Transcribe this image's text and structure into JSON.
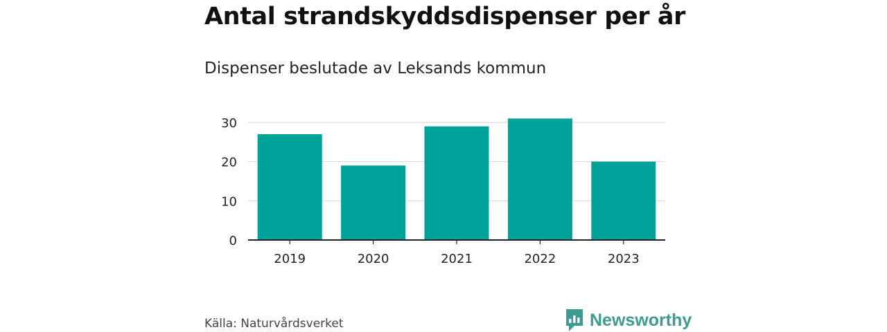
{
  "header": {
    "title": "Antal strandskyddsdispenser per år",
    "subtitle": "Dispenser beslutade av Leksands kommun"
  },
  "footer": {
    "source": "Källa: Naturvårdsverket",
    "brand_name": "Newsworthy",
    "brand_icon": "newsworthy-logo-icon",
    "brand_color": "#3f9a92"
  },
  "colors": {
    "bar": "#00a39a",
    "grid": "#d9d9d9",
    "axis": "#222222",
    "tick_text": "#222222"
  },
  "chart_data": {
    "type": "bar",
    "title": "Antal strandskyddsdispenser per år",
    "subtitle": "Dispenser beslutade av Leksands kommun",
    "categories": [
      "2019",
      "2020",
      "2021",
      "2022",
      "2023"
    ],
    "values": [
      27,
      19,
      29,
      31,
      20
    ],
    "xlabel": "",
    "ylabel": "",
    "ylim": [
      0,
      33
    ],
    "yticks": [
      0,
      10,
      20,
      30
    ],
    "grid": true,
    "legend": "none"
  }
}
